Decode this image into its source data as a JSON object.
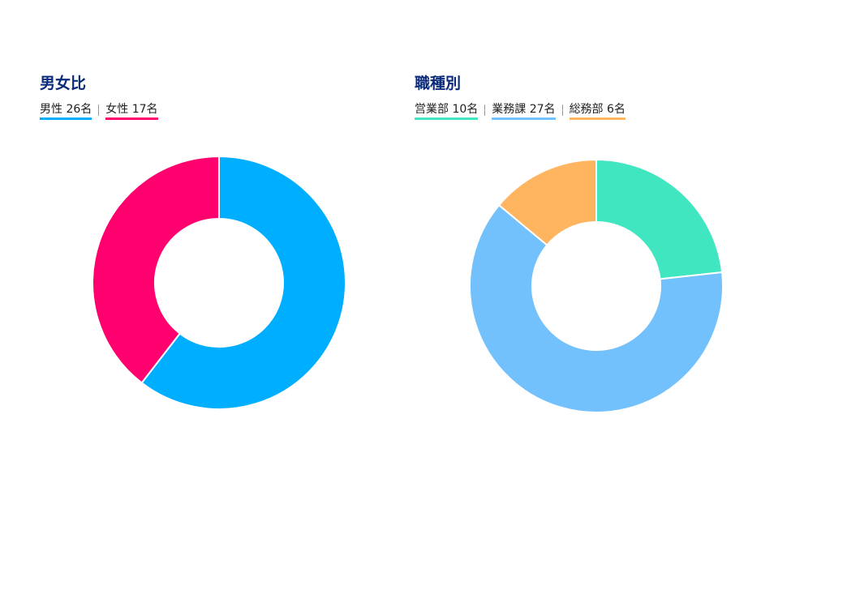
{
  "chart_data": [
    {
      "type": "pie",
      "title": "男女比",
      "categories": [
        "男性",
        "女性"
      ],
      "values": [
        26,
        17
      ],
      "value_labels": [
        "26名",
        "17名"
      ],
      "colors": [
        "#00aeff",
        "#ff006e"
      ]
    },
    {
      "type": "pie",
      "title": "職種別",
      "categories": [
        "営業部",
        "業務課",
        "総務部"
      ],
      "values": [
        10,
        27,
        6
      ],
      "value_labels": [
        "10名",
        "27名",
        "6名"
      ],
      "colors": [
        "#40e6c0",
        "#72c1fd",
        "#ffb45f"
      ]
    }
  ]
}
